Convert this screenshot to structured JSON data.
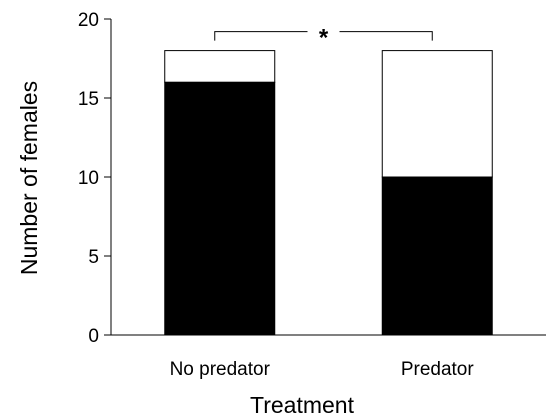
{
  "chart_data": {
    "type": "bar",
    "stacked": true,
    "categories": [
      "No predator",
      "Predator"
    ],
    "series": [
      {
        "values": [
          16,
          10
        ],
        "color": "#000000"
      },
      {
        "values": [
          2,
          8
        ],
        "color": "#ffffff"
      }
    ],
    "totals": [
      18,
      18
    ],
    "xlabel": "Treatment",
    "ylabel": "Number of females",
    "ylim": [
      0,
      20
    ],
    "yticks": [
      "0",
      "5",
      "10",
      "15",
      "20"
    ],
    "grid": false,
    "legend": "none",
    "annotation": {
      "text": "*",
      "between": [
        "No predator",
        "Predator"
      ]
    }
  }
}
